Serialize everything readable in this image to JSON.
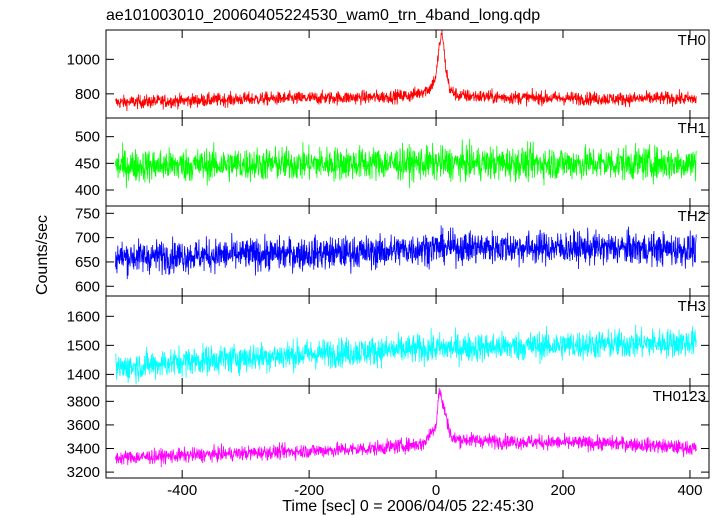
{
  "chart_data": {
    "type": "line",
    "title": "ae101003010_20060405224530_wam0_trn_4band_long.qdp",
    "xlabel": "Time [sec] 0 = 2006/04/05 22:45:30",
    "ylabel": "Counts/sec",
    "xlim": [
      -520,
      430
    ],
    "x_ticks": [
      -400,
      -200,
      0,
      200,
      400
    ],
    "grid": false,
    "panels": [
      {
        "name": "TH0",
        "color": "#ff0000",
        "ylim": [
          660,
          1170
        ],
        "y_ticks": [
          800,
          1000
        ],
        "x": [
          -505,
          -400,
          -300,
          -200,
          -100,
          -40,
          -10,
          0,
          5,
          10,
          15,
          22,
          35,
          100,
          200,
          300,
          350,
          410
        ],
        "y": [
          750,
          760,
          770,
          775,
          780,
          790,
          830,
          900,
          1080,
          1150,
          960,
          820,
          790,
          780,
          775,
          770,
          775,
          770
        ],
        "noise": 35
      },
      {
        "name": "TH1",
        "color": "#00ff00",
        "ylim": [
          370,
          535
        ],
        "y_ticks": [
          400,
          450,
          500
        ],
        "x": [
          -505,
          -300,
          -100,
          0,
          100,
          300,
          410
        ],
        "y": [
          445,
          448,
          450,
          450,
          450,
          450,
          450
        ],
        "noise": 28
      },
      {
        "name": "TH2",
        "color": "#0000ff",
        "ylim": [
          580,
          765
        ],
        "y_ticks": [
          600,
          650,
          700,
          750
        ],
        "x": [
          -505,
          -300,
          -100,
          0,
          100,
          300,
          410
        ],
        "y": [
          660,
          665,
          670,
          680,
          680,
          678,
          675
        ],
        "noise": 30
      },
      {
        "name": "TH3",
        "color": "#00ffff",
        "ylim": [
          1360,
          1670
        ],
        "y_ticks": [
          1400,
          1500,
          1600
        ],
        "x": [
          -505,
          -400,
          -200,
          0,
          200,
          410
        ],
        "y": [
          1420,
          1445,
          1470,
          1490,
          1500,
          1510
        ],
        "noise": 45
      },
      {
        "name": "TH0123",
        "color": "#ff00ff",
        "ylim": [
          3150,
          3930
        ],
        "y_ticks": [
          3200,
          3400,
          3600,
          3800
        ],
        "x": [
          -505,
          -300,
          -100,
          -20,
          0,
          5,
          12,
          25,
          100,
          300,
          410
        ],
        "y": [
          3320,
          3360,
          3400,
          3440,
          3600,
          3900,
          3750,
          3480,
          3460,
          3440,
          3400
        ],
        "noise": 55
      }
    ]
  }
}
